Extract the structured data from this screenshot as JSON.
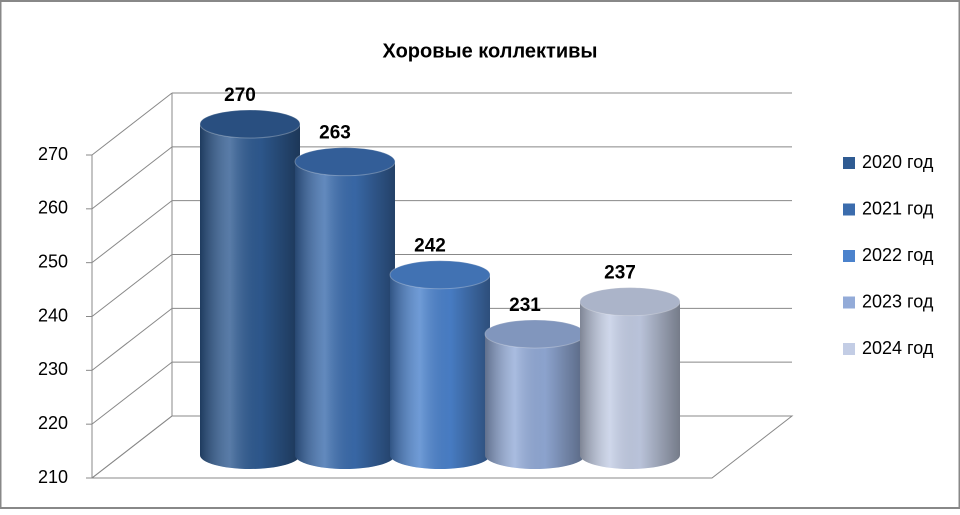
{
  "chart_data": {
    "type": "cylinder",
    "title": "Хоровые коллективы",
    "series": [
      {
        "name": "2020 год",
        "color": "#2f5b92",
        "values": [
          270
        ]
      },
      {
        "name": "2021 год",
        "color": "#3b6cad",
        "values": [
          263
        ]
      },
      {
        "name": "2022 год",
        "color": "#4b82cc",
        "values": [
          242
        ]
      },
      {
        "name": "2023 год",
        "color": "#93abd8",
        "values": [
          231
        ]
      },
      {
        "name": "2024 год",
        "color": "#c3cde5",
        "values": [
          237
        ]
      }
    ],
    "ylim": [
      210,
      270
    ],
    "yticks": [
      210,
      220,
      230,
      240,
      250,
      260,
      270
    ],
    "grid": true,
    "legend": "right"
  }
}
